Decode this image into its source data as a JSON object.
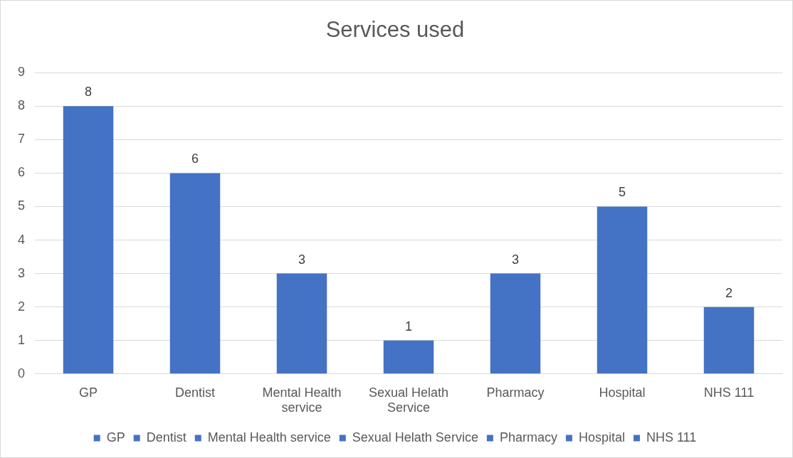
{
  "chart_data": {
    "type": "bar",
    "title": "Services used",
    "categories": [
      "GP",
      "Dentist",
      "Mental Health service",
      "Sexual Helath Service",
      "Pharmacy",
      "Hospital",
      "NHS 111"
    ],
    "series": [
      {
        "name": "GP",
        "color": "#4472c4",
        "values": [
          8,
          null,
          null,
          null,
          null,
          null,
          null
        ]
      },
      {
        "name": "Dentist",
        "color": "#4472c4",
        "values": [
          null,
          6,
          null,
          null,
          null,
          null,
          null
        ]
      },
      {
        "name": "Mental Health service",
        "color": "#4472c4",
        "values": [
          null,
          null,
          3,
          null,
          null,
          null,
          null
        ]
      },
      {
        "name": "Sexual Helath Service",
        "color": "#4472c4",
        "values": [
          null,
          null,
          null,
          1,
          null,
          null,
          null
        ]
      },
      {
        "name": "Pharmacy",
        "color": "#4472c4",
        "values": [
          null,
          null,
          null,
          null,
          3,
          null,
          null
        ]
      },
      {
        "name": "Hospital",
        "color": "#4472c4",
        "values": [
          null,
          null,
          null,
          null,
          null,
          5,
          null
        ]
      },
      {
        "name": "NHS 111",
        "color": "#4472c4",
        "values": [
          null,
          null,
          null,
          null,
          null,
          null,
          2
        ]
      }
    ],
    "ylim": [
      0,
      9
    ],
    "yticks": [
      0,
      1,
      2,
      3,
      4,
      5,
      6,
      7,
      8,
      9
    ],
    "grid": "y",
    "legend": "bottom",
    "data_labels": true
  }
}
